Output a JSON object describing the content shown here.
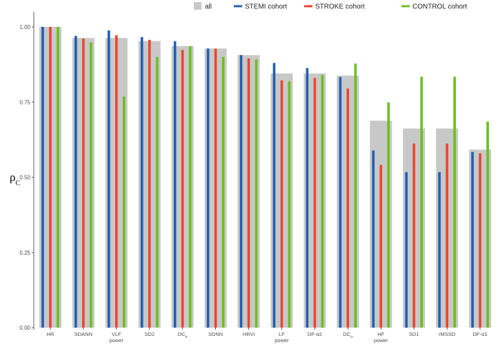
{
  "chart_data": {
    "type": "bar",
    "ylabel_main": "ρ",
    "ylabel_sub": "C",
    "ylim": [
      0,
      1
    ],
    "yticks": [
      "0.00",
      "0.25",
      "0.50",
      "0.75",
      "1.00"
    ],
    "ytick_values": [
      0,
      0.25,
      0.5,
      0.75,
      1.0
    ],
    "legend_position": "top-right",
    "categories": [
      {
        "line1": "HR",
        "line2": ""
      },
      {
        "line1": "SDANN",
        "line2": ""
      },
      {
        "line1": "VLF",
        "line2": "power"
      },
      {
        "line1": "SD2",
        "line2": ""
      },
      {
        "line1": "DC",
        "line2": "",
        "sub": "tr"
      },
      {
        "line1": "SDNN",
        "line2": ""
      },
      {
        "line1": "HRVi",
        "line2": ""
      },
      {
        "line1": "LF",
        "line2": "power"
      },
      {
        "line1": "DF-α2",
        "line2": ""
      },
      {
        "line1": "DC",
        "line2": "",
        "sub": "rr"
      },
      {
        "line1": "HF",
        "line2": "power"
      },
      {
        "line1": "SD1",
        "line2": ""
      },
      {
        "line1": "rMSSD",
        "line2": ""
      },
      {
        "line1": "DF-α1",
        "line2": ""
      }
    ],
    "series": [
      {
        "name": "all",
        "color": "#c8c8c8",
        "values": [
          1.0,
          0.963,
          0.963,
          0.953,
          0.936,
          0.928,
          0.906,
          0.845,
          0.845,
          0.838,
          0.688,
          0.662,
          0.662,
          0.592
        ]
      },
      {
        "name": "STEMI cohort",
        "color": "#1f5fb4",
        "values": [
          1.0,
          0.97,
          0.988,
          0.966,
          0.952,
          0.928,
          0.906,
          0.88,
          0.863,
          0.833,
          0.589,
          0.517,
          0.517,
          0.584
        ]
      },
      {
        "name": "STROKE cohort",
        "color": "#e8472e",
        "values": [
          1.0,
          0.961,
          0.972,
          0.957,
          0.923,
          0.928,
          0.895,
          0.822,
          0.83,
          0.795,
          0.541,
          0.612,
          0.612,
          0.58
        ]
      },
      {
        "name": "CONTROL cohort",
        "color": "#6cbf1d",
        "values": [
          1.0,
          0.948,
          0.768,
          0.9,
          0.936,
          0.9,
          0.892,
          0.819,
          0.84,
          0.878,
          0.749,
          0.834,
          0.834,
          0.685
        ]
      }
    ]
  }
}
